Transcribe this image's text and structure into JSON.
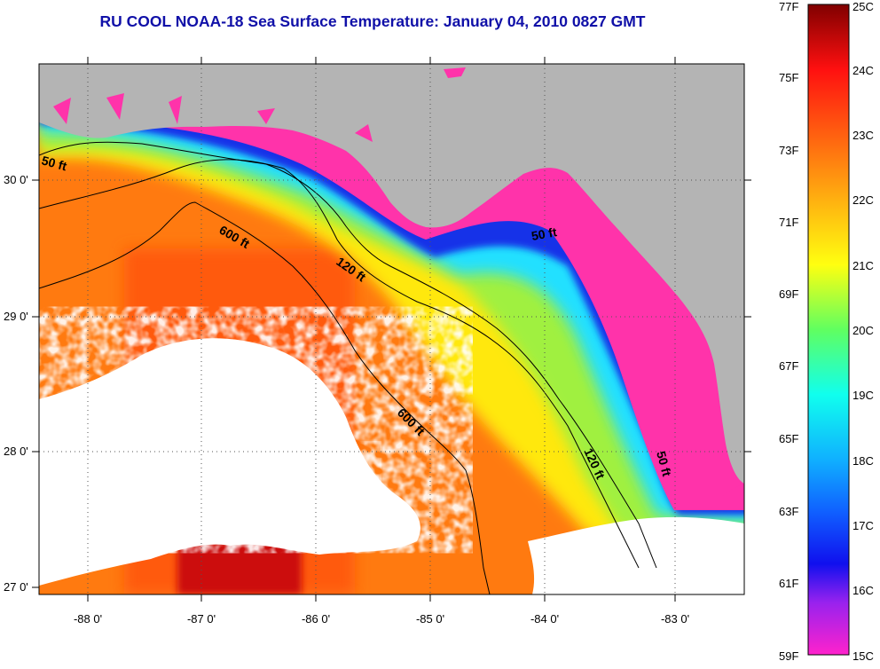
{
  "title": "RU COOL  NOAA-18  Sea Surface Temperature:  January 04, 2010 0827 GMT",
  "lat_labels": [
    "30 0'",
    "29 0'",
    "28 0'",
    "27 0'"
  ],
  "lon_labels": [
    "-88 0'",
    "-87 0'",
    "-86 0'",
    "-85 0'",
    "-84 0'",
    "-83 0'"
  ],
  "isobath_labels": [
    "50 ft",
    "600 ft",
    "120 ft",
    "50 ft",
    "600 ft",
    "120 ft",
    "50 ft"
  ],
  "colorbar": {
    "fahrenheit": [
      "77F",
      "75F",
      "73F",
      "71F",
      "69F",
      "67F",
      "65F",
      "63F",
      "61F",
      "59F"
    ],
    "celsius": [
      "25C",
      "24C",
      "23C",
      "22C",
      "21C",
      "20C",
      "19C",
      "18C",
      "17C",
      "16C",
      "15C"
    ]
  },
  "colors": {
    "title": "#1010a8",
    "land": "#b4b4b4",
    "cold": "#ff33aa",
    "warm": "#cc1010"
  }
}
